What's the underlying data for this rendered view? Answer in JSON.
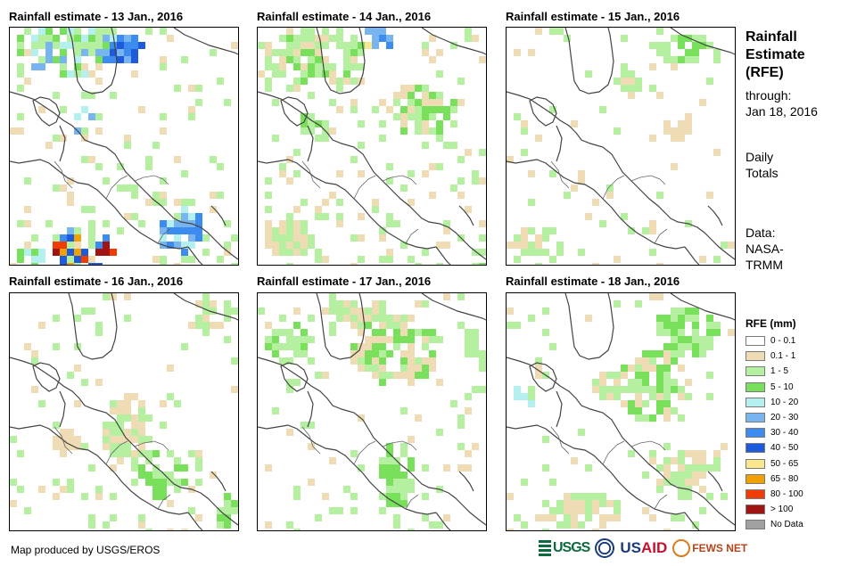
{
  "panels": [
    {
      "title": "Rainfall estimate - 13 Jan., 2016"
    },
    {
      "title": "Rainfall estimate - 14 Jan., 2016"
    },
    {
      "title": "Rainfall estimate - 15 Jan., 2016"
    },
    {
      "title": "Rainfall estimate - 16 Jan., 2016"
    },
    {
      "title": "Rainfall estimate - 17 Jan., 2016"
    },
    {
      "title": "Rainfall estimate - 18 Jan., 2016"
    }
  ],
  "sidebar": {
    "title_line1": "Rainfall",
    "title_line2": "Estimate",
    "title_line3": "(RFE)",
    "through_label": "through:",
    "through_date": "Jan 18, 2016",
    "totals_line1": "Daily",
    "totals_line2": "Totals",
    "data_label": "Data:",
    "data_source_line1": "NASA-",
    "data_source_line2": "TRMM"
  },
  "legend": {
    "title": "RFE (mm)",
    "items": [
      {
        "label": "0 - 0.1",
        "color": "#ffffff"
      },
      {
        "label": "0.1 - 1",
        "color": "#f0dcb4"
      },
      {
        "label": "1 - 5",
        "color": "#b4f0a0"
      },
      {
        "label": "5 - 10",
        "color": "#78e05a"
      },
      {
        "label": "10 - 20",
        "color": "#b4f0f0"
      },
      {
        "label": "20 - 30",
        "color": "#78b4f0"
      },
      {
        "label": "30 - 40",
        "color": "#3c8cf0"
      },
      {
        "label": "40 - 50",
        "color": "#1e5adc"
      },
      {
        "label": "50 - 65",
        "color": "#fae68c"
      },
      {
        "label": "65 - 80",
        "color": "#f0a000"
      },
      {
        "label": "80 - 100",
        "color": "#f03c00"
      },
      {
        "label": "> 100",
        "color": "#a01414"
      },
      {
        "label": "No Data",
        "color": "#a0a0a0"
      }
    ]
  },
  "footer": {
    "credit": "Map produced by USGS/EROS",
    "logo_usgs": "USGS",
    "logo_usaid_prefix": "US",
    "logo_usaid_suffix": "AID",
    "logo_fews": "FEWS NET"
  }
}
